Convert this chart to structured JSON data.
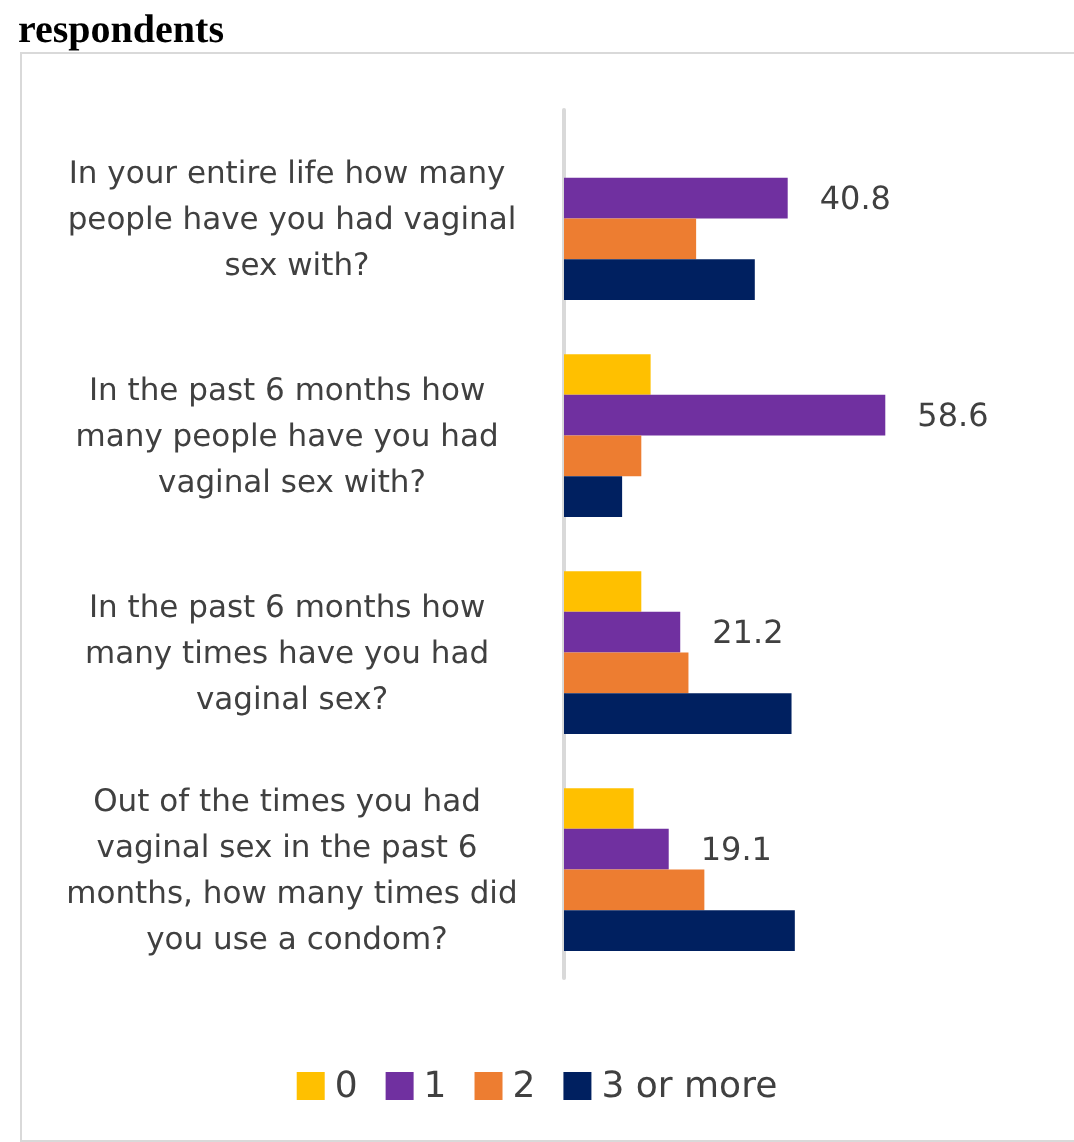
{
  "chart_data": {
    "type": "bar",
    "orientation": "horizontal",
    "title": "respondents",
    "categories": [
      "In your entire life how many people have you had vaginal sex with?",
      "In the past 6 months how many people have you had vaginal sex with?",
      "In the past 6 months how many times have you had vaginal sex?",
      "Out of the times you had vaginal sex in the past 6 months, how many times did you use a condom?"
    ],
    "series": [
      {
        "name": "0",
        "color": "#ffc000",
        "values": [
          0,
          15.8,
          14.1,
          12.7
        ]
      },
      {
        "name": "1",
        "color": "#7030a0",
        "values": [
          40.8,
          58.6,
          21.2,
          19.1
        ],
        "value_labels": [
          "40.8",
          "58.6",
          "21.2",
          "19.1"
        ]
      },
      {
        "name": "2",
        "color": "#ed7d31",
        "values": [
          24.1,
          14.1,
          22.7,
          25.6
        ]
      },
      {
        "name": "3 or more",
        "color": "#002060",
        "values": [
          34.8,
          10.6,
          41.5,
          42.1
        ]
      }
    ],
    "legend": "bottom",
    "tick_labels": "y"
  }
}
